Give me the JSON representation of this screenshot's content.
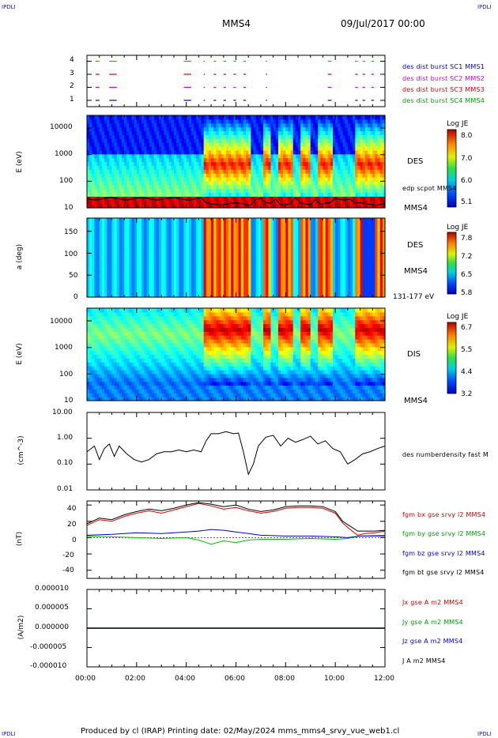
{
  "header": {
    "corner_tl": "IPDLI",
    "corner_tr": "IPDLI",
    "corner_bl": "IPDLI",
    "corner_br": "IPDLI",
    "spacecraft": "MMS4",
    "datetime": "09/Jul/2017 00:00"
  },
  "footer": {
    "produced": "Produced by cl (IRAP)   Printing date: 02/May/2024   mms_mms4_srvy_vue_web1.cl"
  },
  "colors": {
    "black": "#000000",
    "red": "#d40000",
    "green": "#00c000",
    "blue": "#0000d0",
    "magenta": "#d000d0"
  },
  "chart_data": [
    {
      "type": "scatter",
      "panel": "burst-availability",
      "y_ticks": [
        "1",
        "2",
        "3",
        "4"
      ],
      "ylim": [
        0.5,
        4.5
      ],
      "legend": [
        {
          "name": "des dist burst SC1 MMS1",
          "color": "#0000d0"
        },
        {
          "name": "des dist burst SC2 MMS2",
          "color": "#d000d0"
        },
        {
          "name": "des dist burst SC3 MMS3",
          "color": "#d40000"
        },
        {
          "name": "des dist burst SC4 MMS4",
          "color": "#00c000"
        }
      ],
      "intervals_hours": [
        [
          0.35,
          0.5
        ],
        [
          0.9,
          1.2
        ],
        [
          3.9,
          4.2
        ],
        [
          4.7,
          4.75
        ],
        [
          5.1,
          5.2
        ],
        [
          5.5,
          5.6
        ],
        [
          5.9,
          6.0
        ],
        [
          6.3,
          6.4
        ],
        [
          7.2,
          7.25
        ],
        [
          9.7,
          9.85
        ],
        [
          10.8,
          10.9
        ],
        [
          11.1,
          11.2
        ],
        [
          11.45,
          11.55
        ]
      ]
    },
    {
      "type": "heatmap",
      "panel": "des-energy",
      "ylabel": "E (eV)",
      "y_ticks": [
        "10",
        "100",
        "1000",
        "10000"
      ],
      "ylim": [
        10,
        30000
      ],
      "yscale": "log",
      "colorbar": {
        "title": "Log JE",
        "ticks": [
          "8.0",
          "7.0",
          "6.0",
          "5.1"
        ],
        "range": [
          5.1,
          8.0
        ]
      },
      "labels": [
        "DES",
        "edp scpot MMS4",
        "MMS4"
      ]
    },
    {
      "type": "heatmap",
      "panel": "des-pitch",
      "ylabel": "a (deg)",
      "y_ticks": [
        "0",
        "50",
        "100",
        "150"
      ],
      "ylim": [
        0,
        180
      ],
      "colorbar": {
        "title": "Log JE",
        "ticks": [
          "7.8",
          "7.2",
          "6.5",
          "5.8"
        ],
        "range": [
          5.8,
          7.8
        ]
      },
      "labels": [
        "DES",
        "MMS4",
        "131-177 eV"
      ]
    },
    {
      "type": "heatmap",
      "panel": "dis-energy",
      "ylabel": "E (eV)",
      "y_ticks": [
        "10",
        "100",
        "1000",
        "10000"
      ],
      "ylim": [
        10,
        30000
      ],
      "yscale": "log",
      "colorbar": {
        "title": "Log JE",
        "ticks": [
          "6.7",
          "5.5",
          "4.4",
          "3.2"
        ],
        "range": [
          3.2,
          6.7
        ]
      },
      "labels": [
        "DIS",
        "MMS4"
      ]
    },
    {
      "type": "line",
      "panel": "density",
      "ylabel": "(cm^-3)",
      "y_ticks": [
        "0.01",
        "0.10",
        "1.00",
        "10.00"
      ],
      "ylim": [
        0.01,
        10
      ],
      "yscale": "log",
      "series": [
        {
          "name": "des numberdensity fast M",
          "color": "#000000",
          "x": [
            0,
            0.3,
            0.5,
            0.7,
            0.9,
            1.1,
            1.3,
            1.6,
            1.9,
            2.2,
            2.5,
            2.8,
            3.1,
            3.4,
            3.7,
            4.0,
            4.3,
            4.6,
            4.8,
            5.0,
            5.3,
            5.6,
            5.9,
            6.1,
            6.3,
            6.5,
            6.7,
            6.9,
            7.2,
            7.5,
            7.8,
            8.1,
            8.4,
            8.7,
            9.0,
            9.3,
            9.6,
            9.9,
            10.2,
            10.5,
            10.8,
            11.1,
            11.4,
            11.7,
            12
          ],
          "y": [
            0.3,
            0.5,
            0.15,
            0.4,
            0.6,
            0.2,
            0.5,
            0.25,
            0.15,
            0.12,
            0.15,
            0.25,
            0.3,
            0.3,
            0.35,
            0.3,
            0.35,
            0.3,
            0.8,
            1.5,
            1.5,
            1.8,
            1.5,
            1.6,
            0.3,
            0.04,
            0.1,
            0.5,
            1.1,
            1.3,
            0.5,
            1.0,
            0.7,
            0.9,
            1.2,
            0.6,
            0.8,
            0.4,
            0.3,
            0.1,
            0.15,
            0.25,
            0.3,
            0.4,
            0.5
          ]
        }
      ]
    },
    {
      "type": "line",
      "panel": "magnetic-field",
      "ylabel": "(nT)",
      "y_ticks": [
        "-40",
        "-20",
        "0",
        "20",
        "40"
      ],
      "ylim": [
        -50,
        45
      ],
      "series": [
        {
          "name": "fgm bx gse srvy l2 MMS4",
          "color": "#d40000",
          "x": [
            0,
            0.5,
            1,
            1.5,
            2,
            2.5,
            3,
            3.5,
            4,
            4.5,
            5,
            5.5,
            6,
            6.5,
            7,
            7.5,
            8,
            8.5,
            9,
            9.5,
            10,
            10.3,
            10.6,
            10.9,
            11.2,
            11.6,
            12
          ],
          "y": [
            15,
            22,
            20,
            26,
            30,
            33,
            30,
            34,
            38,
            42,
            39,
            35,
            37,
            33,
            30,
            32,
            36,
            37,
            37,
            36,
            30,
            18,
            10,
            3,
            5,
            6,
            8
          ]
        },
        {
          "name": "fgm by gse srvy l2 MMS4",
          "color": "#00c000",
          "x": [
            0,
            1,
            2,
            3,
            4,
            4.5,
            5,
            5.5,
            6,
            6.5,
            7,
            8,
            9,
            10,
            10.5,
            11,
            12
          ],
          "y": [
            2,
            1,
            0,
            -1,
            0,
            -3,
            -8,
            -4,
            -6,
            -3,
            -2,
            -2,
            -1,
            -2,
            -1,
            2,
            3
          ]
        },
        {
          "name": "fgm bz gse srvy l2 MMS4",
          "color": "#0000d0",
          "x": [
            0,
            1,
            2,
            3,
            4,
            4.5,
            5,
            5.5,
            6,
            6.5,
            7,
            8,
            9,
            10,
            10.5,
            11,
            12
          ],
          "y": [
            3,
            4,
            6,
            5,
            7,
            8,
            10,
            9,
            7,
            5,
            3,
            2,
            2,
            1,
            0,
            2,
            2
          ]
        },
        {
          "name": "fgm bt gse srvy l2 MMS4",
          "color": "#000000",
          "x": [
            0,
            0.5,
            1,
            1.5,
            2,
            2.5,
            3,
            3.5,
            4,
            4.5,
            5,
            5.5,
            6,
            6.5,
            7,
            7.5,
            8,
            8.5,
            9,
            9.5,
            10,
            10.3,
            10.6,
            10.9,
            11.2,
            11.6,
            12
          ],
          "y": [
            17,
            24,
            22,
            28,
            32,
            35,
            33,
            36,
            40,
            43,
            41,
            38,
            40,
            35,
            32,
            34,
            38,
            39,
            39,
            38,
            32,
            20,
            14,
            8,
            8,
            8,
            9
          ]
        }
      ]
    },
    {
      "type": "line",
      "panel": "current-density",
      "ylabel": "(A/m2)",
      "y_ticks": [
        "-0.000010",
        "-0.000005",
        "0.000000",
        "0.000005",
        "0.000010"
      ],
      "ylim": [
        -1e-05,
        1e-05
      ],
      "series": [
        {
          "name": "Jx gse A m2 MMS4",
          "color": "#d40000",
          "x": [
            0,
            12
          ],
          "y": [
            0,
            0
          ]
        },
        {
          "name": "Jy gse A m2 MMS4",
          "color": "#00c000",
          "x": [
            0,
            12
          ],
          "y": [
            0,
            0
          ]
        },
        {
          "name": "Jz gse A m2 MMS4",
          "color": "#0000d0",
          "x": [
            0,
            12
          ],
          "y": [
            0,
            0
          ]
        },
        {
          "name": "J A m2 MMS4",
          "color": "#000000",
          "x": [
            0,
            12
          ],
          "y": [
            0,
            0
          ]
        }
      ]
    }
  ],
  "x_axis": {
    "ticks": [
      "00:00",
      "02:00",
      "04:00",
      "06:00",
      "08:00",
      "10:00",
      "12:00"
    ],
    "xlim_hours": [
      0,
      12
    ]
  }
}
